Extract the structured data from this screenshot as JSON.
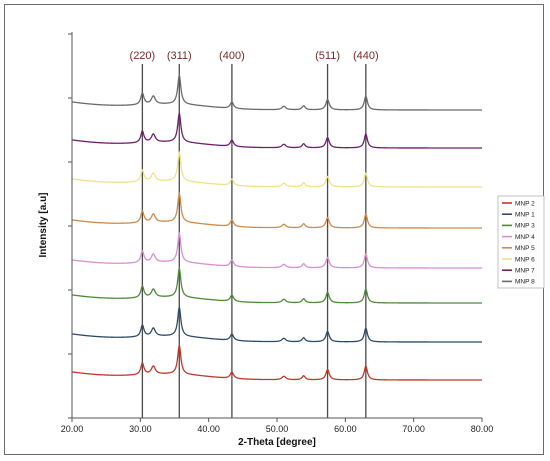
{
  "chart_data": {
    "type": "line",
    "title": "",
    "xlabel": "2-Theta [degree]",
    "ylabel": "Intensity [a.u]",
    "xlim": [
      20,
      80
    ],
    "x_ticks": [
      "20.00",
      "30.00",
      "40.00",
      "50.00",
      "60.00",
      "70.00",
      "80.00"
    ],
    "grid": false,
    "legend_position": "right",
    "peaks": [
      {
        "label": "(220)",
        "x": 30.3
      },
      {
        "label": "(311)",
        "x": 35.7
      },
      {
        "label": "(400)",
        "x": 43.4
      },
      {
        "label": "(511)",
        "x": 57.4
      },
      {
        "label": "(440)",
        "x": 63.0
      }
    ],
    "series": [
      {
        "name": "MNP 2",
        "color": "#c0392b"
      },
      {
        "name": "MNP 1",
        "color": "#2e4a6b"
      },
      {
        "name": "MNP 3",
        "color": "#4e8a3a"
      },
      {
        "name": "MNP 4",
        "color": "#d98fd0"
      },
      {
        "name": "MNP 5",
        "color": "#cf8a4c"
      },
      {
        "name": "MNP 6",
        "color": "#ede28a"
      },
      {
        "name": "MNP 7",
        "color": "#6e1f6e"
      },
      {
        "name": "MNP 8",
        "color": "#6b6b6b"
      }
    ]
  }
}
